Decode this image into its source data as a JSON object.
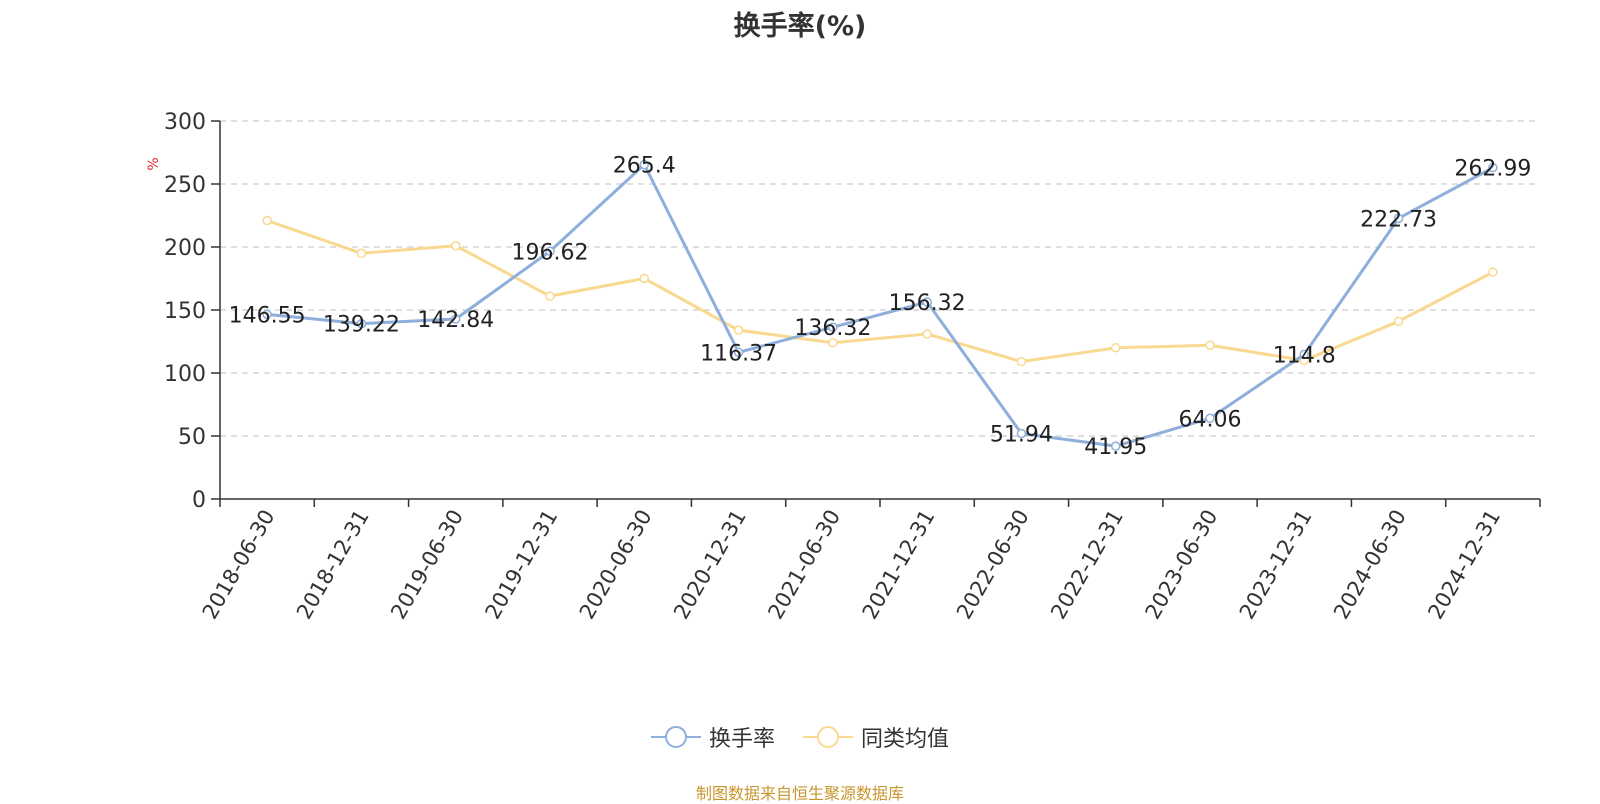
{
  "chart_data": {
    "type": "line",
    "title": "换手率(%)",
    "ylabel": "%",
    "ylim": [
      0,
      300
    ],
    "yticks": [
      0,
      50,
      100,
      150,
      200,
      250,
      300
    ],
    "grid": true,
    "legend_position": "bottom-center",
    "categories": [
      "2018-06-30",
      "2018-12-31",
      "2019-06-30",
      "2019-12-31",
      "2020-06-30",
      "2020-12-31",
      "2021-06-30",
      "2021-12-31",
      "2022-06-30",
      "2022-12-31",
      "2023-06-30",
      "2023-12-31",
      "2024-06-30",
      "2024-12-31"
    ],
    "series": [
      {
        "name": "换手率",
        "color": "#8eaedb",
        "values": [
          146.55,
          139.22,
          142.84,
          196.62,
          265.4,
          116.37,
          136.32,
          156.32,
          51.94,
          41.95,
          64.06,
          114.8,
          222.73,
          262.99
        ],
        "labels": [
          "146.55",
          "139.22",
          "142.84",
          "196.62",
          "265.4",
          "116.37",
          "136.32",
          "156.32",
          "51.94",
          "41.95",
          "64.06",
          "114.8",
          "222.73",
          "262.99"
        ]
      },
      {
        "name": "同类均值",
        "color": "#f9d98f",
        "values": [
          221,
          195,
          201,
          161,
          175,
          134,
          124,
          131,
          109,
          120,
          122,
          110,
          141,
          180
        ]
      }
    ]
  },
  "source_note": "制图数据来自恒生聚源数据库"
}
